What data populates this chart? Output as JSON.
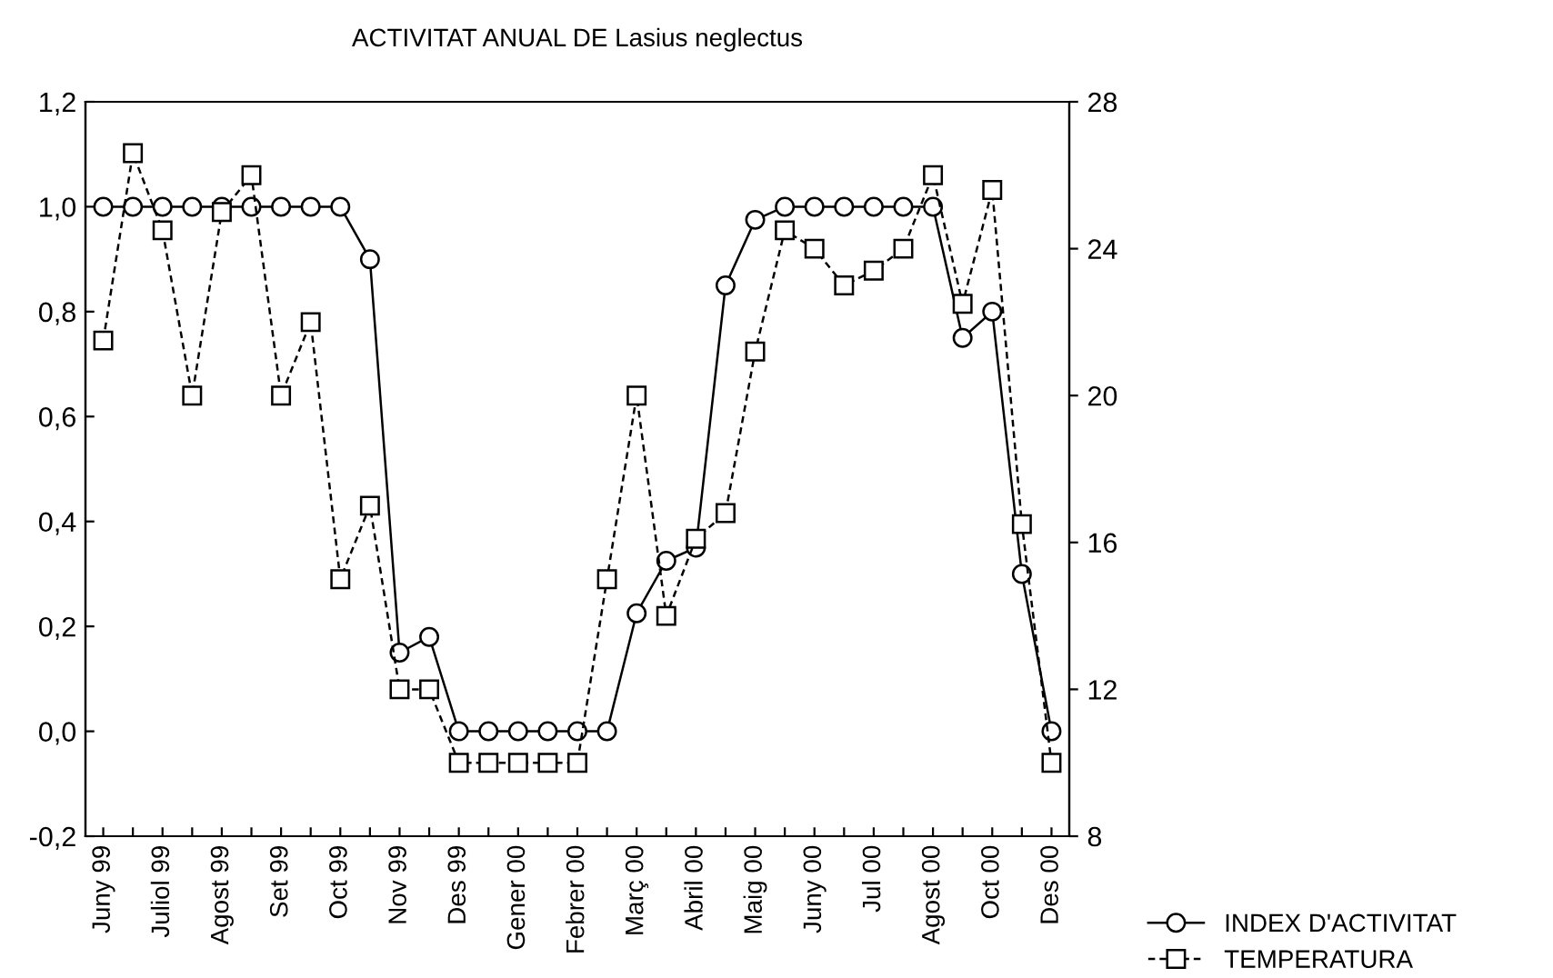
{
  "chart_data": {
    "type": "line",
    "title": "ACTIVITAT ANUAL DE Lasius neglectus",
    "categories": [
      "Juny 99",
      null,
      "Juliol 99",
      null,
      "Agost 99",
      null,
      "Set 99",
      null,
      "Oct 99",
      null,
      "Nov 99",
      null,
      "Des 99",
      null,
      "Gener 00",
      null,
      "Febrer 00",
      null,
      "Març 00",
      null,
      "Abril 00",
      null,
      "Maig 00",
      null,
      "Juny 00",
      null,
      "Jul 00",
      null,
      "Agost 00",
      null,
      "Oct 00",
      null,
      "Des 00"
    ],
    "series": [
      {
        "name": "INDEX D'ACTIVITAT",
        "color": "#000000",
        "marker": "circle",
        "line_style": "solid",
        "values": [
          1,
          1,
          1,
          1,
          1,
          1,
          1,
          1,
          1,
          0.9,
          0.15,
          0.18,
          0,
          0,
          0,
          0,
          0,
          0,
          0.225,
          0.325,
          0.35,
          0.85,
          0.975,
          1,
          1,
          1,
          1,
          1,
          1,
          0.75,
          0.8,
          0.3,
          0
        ]
      },
      {
        "name": "TEMPERATURA",
        "color": "#000000",
        "marker": "square",
        "line_style": "dashed",
        "axis": "y2",
        "values": [
          21.5,
          26.6,
          24.5,
          20,
          25,
          26,
          20,
          22,
          15,
          17,
          12,
          12,
          10,
          10,
          10,
          10,
          10,
          15,
          20,
          14,
          16.1,
          16.8,
          21.2,
          24.5,
          24,
          23,
          23.4,
          24,
          26,
          22.5,
          25.6,
          16.5,
          10
        ]
      }
    ],
    "ylim": [
      -0.2,
      1.2
    ],
    "yticks": [
      {
        "value": -0.2,
        "label": "-0,2"
      },
      {
        "value": 0,
        "label": "0,0"
      },
      {
        "value": 0.2,
        "label": "0,2"
      },
      {
        "value": 0.4,
        "label": "0,4"
      },
      {
        "value": 0.6,
        "label": "0,6"
      },
      {
        "value": 0.8,
        "label": "0,8"
      },
      {
        "value": 1.0,
        "label": "1,0"
      },
      {
        "value": 1.2,
        "label": "1,2"
      }
    ],
    "y2lim": [
      8,
      28
    ],
    "y2ticks": [
      8,
      12,
      16,
      20,
      24,
      28
    ],
    "grid": false,
    "legend": "bottom right"
  }
}
